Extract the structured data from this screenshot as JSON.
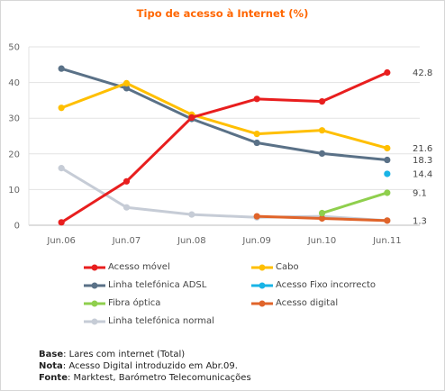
{
  "chart_data": {
    "type": "line",
    "title": "Tipo de acesso à Internet (%)",
    "title_color": "#ff6600",
    "categories": [
      "Jun.06",
      "Jun.07",
      "Jun.08",
      "Jun.09",
      "Jun.10",
      "Jun.11"
    ],
    "ylim": [
      0,
      50
    ],
    "yticks": [
      "0",
      "10",
      "20",
      "30",
      "40",
      "50"
    ],
    "grid": "horizontal",
    "series": [
      {
        "name": "Acesso móvel",
        "color": "#e81e1e",
        "values": [
          0.8,
          12.3,
          30.2,
          35.4,
          34.7,
          42.8
        ],
        "end_label": "42.8"
      },
      {
        "name": "Cabo",
        "color": "#ffbf00",
        "values": [
          32.9,
          39.8,
          31.0,
          25.6,
          26.6,
          21.6
        ],
        "end_label": "21.6"
      },
      {
        "name": "Linha telefónica ADSL",
        "color": "#5a7187",
        "values": [
          43.9,
          38.4,
          29.8,
          23.1,
          20.1,
          18.3
        ],
        "end_label": "18.3"
      },
      {
        "name": "Acesso Fixo incorrecto",
        "color": "#19b4e6",
        "values": [
          null,
          null,
          null,
          null,
          null,
          14.4
        ],
        "end_label": "14.4"
      },
      {
        "name": "Fibra óptica",
        "color": "#8fcf4d",
        "values": [
          null,
          null,
          null,
          null,
          3.4,
          9.1
        ],
        "end_label": "9.1"
      },
      {
        "name": "Acesso digital",
        "color": "#e0642a",
        "values": [
          null,
          null,
          null,
          2.5,
          1.9,
          1.3
        ],
        "end_label": "1.3"
      },
      {
        "name": "Linha telefónica normal",
        "color": "#c6ccd6",
        "values": [
          16.0,
          5.0,
          3.0,
          2.2,
          2.5,
          1.3
        ]
      }
    ]
  },
  "footnotes": {
    "base_label": "Base",
    "base_text": ": Lares com internet (Total)",
    "nota_label": "Nota",
    "nota_text": ": Acesso Digital introduzido em Abr.09.",
    "fonte_label": "Fonte",
    "fonte_text": ": Marktest, Barómetro Telecomunicações"
  }
}
